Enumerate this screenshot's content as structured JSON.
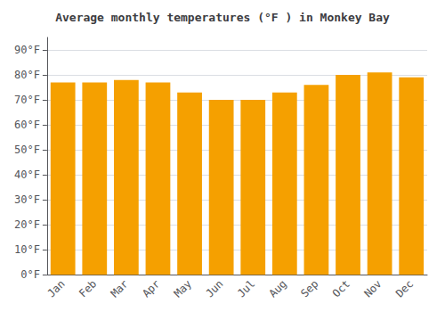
{
  "chart_data": {
    "type": "bar",
    "title": "Average monthly temperatures (°F ) in Monkey Bay",
    "categories": [
      "Jan",
      "Feb",
      "Mar",
      "Apr",
      "May",
      "Jun",
      "Jul",
      "Aug",
      "Sep",
      "Oct",
      "Nov",
      "Dec"
    ],
    "values": [
      77,
      77,
      78,
      77,
      73,
      70,
      70,
      73,
      76,
      80,
      81,
      79
    ],
    "color": "#F5A000",
    "ylim": [
      0,
      95
    ],
    "yticks": [
      {
        "value": 0,
        "label": "0°F"
      },
      {
        "value": 10,
        "label": "10°F"
      },
      {
        "value": 20,
        "label": "20°F"
      },
      {
        "value": 30,
        "label": "30°F"
      },
      {
        "value": 40,
        "label": "40°F"
      },
      {
        "value": 50,
        "label": "50°F"
      },
      {
        "value": 60,
        "label": "60°F"
      },
      {
        "value": 70,
        "label": "70°F"
      },
      {
        "value": 80,
        "label": "80°F"
      },
      {
        "value": 90,
        "label": "90°F"
      }
    ],
    "grid": true
  }
}
